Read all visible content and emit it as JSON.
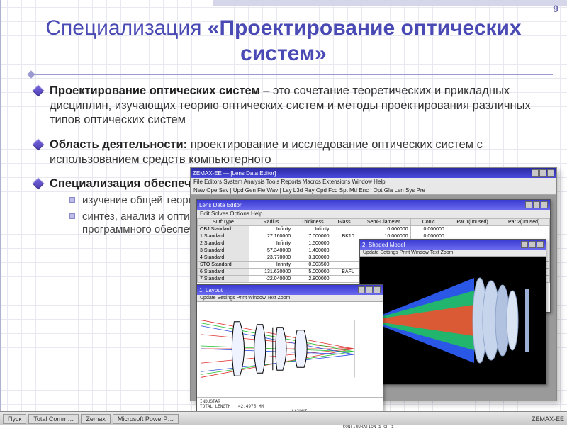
{
  "page_number": "9",
  "title_light": "Специализация ",
  "title_bold": "«Проектирование оптических систем»",
  "colors": {
    "title": "#4a4ab5",
    "page_num": "#6a6ab0",
    "grid": "#e8e8f0",
    "rule": "#9a9ad0",
    "bullet_diamond_a": "#7a6ae0",
    "bullet_diamond_b": "#4a3ab0",
    "sub_dot_fill": "#bdbde8",
    "sub_dot_border": "#8a8ad0",
    "win_gray": "#c0c0c0",
    "mdi_bg": "#9a9a9a",
    "titlebar_main_a": "#2a2aa0",
    "titlebar_main_b": "#4a4ae0",
    "titlebar_sub_a": "#3a3ad0",
    "titlebar_sub_b": "#6a6af0",
    "ray_red": "#e03030",
    "ray_green": "#20c030",
    "ray_blue": "#3050e0",
    "lens_fill": "#bcd2ff",
    "lens_stroke": "#5a78c0",
    "shaded_cone_outer": "#3060ff",
    "shaded_cone_mid": "#20c060",
    "shaded_cone_inner": "#f05030",
    "shaded_lens": "#c6d4ec"
  },
  "bullets": [
    {
      "bold": "Проектирование оптических систем",
      "rest": " – это сочетание теоретических и прикладных дисциплин, изучающих теорию оптических систем и методы проектирования различных типов оптических систем"
    },
    {
      "bold": "Область деятельности:",
      "rest_prefix": " проектирование и исследование оптических систем с использованием средств компьютерного"
    },
    {
      "bold": "Специализация обеспечивает:",
      "rest": "",
      "subs": [
        "изучение общей теории и методов расчета оптических приборов",
        "синтез, анализ и оптимизация оптических систем с помощью специализированного программного обеспечения"
      ]
    }
  ],
  "app": {
    "main_title": "ZEMAX-EE — [Lens Data Editor]",
    "menu": "File  Editors  System  Analysis  Tools  Reports  Macros  Extensions  Window  Help",
    "toolbar": "New  Ope  Sav   |  Upd  Gen  Fie  Wav   |  Lay  L3d  Ray  Opd  Fcd  Spt  Mtf  Enc   |  Opt  Gla  Len  Sys  Pre",
    "lde_title": "Lens Data Editor",
    "lde_menu": "Edit  Solves  Options  Help",
    "layout_title": "1: Layout",
    "layout_menu": "Update  Settings  Print  Window  Text  Zoom",
    "shaded_title": "2: Shaded Model",
    "shaded_menu": "Update  Settings  Print  Window  Text  Zoom",
    "layout_footer": "INDUSTAR\nTOTAL LENGTH   42.4975 MM\n                                    LAYOUT\n                                                        EFFL: 80\n                                                        INDUSTAR.ZMX\n                                                        CONFIGURATION 1 OF 1"
  },
  "lens_table": {
    "columns": [
      "Surf:Type",
      "Radius",
      "Thickness",
      "Glass",
      "Semi-Diameter",
      "Conic",
      "Par 1(unused)",
      "Par 2(unused)"
    ],
    "rows": [
      [
        "OBJ  Standard",
        "Infinity",
        "Infinity",
        "",
        "0.000000",
        "0.000000",
        "",
        ""
      ],
      [
        "1    Standard",
        "27.160000",
        "7.000000",
        "BK10",
        "10.000000",
        "0.000000",
        "",
        ""
      ],
      [
        "2    Standard",
        "Infinity",
        "1.500000",
        "",
        "10.000000",
        "0.000000",
        "",
        ""
      ],
      [
        "3    Standard",
        "-57.340000",
        "1.400000",
        "",
        "10.000000",
        "0.000000",
        "",
        ""
      ],
      [
        "4    Standard",
        "23.770000",
        "3.100000",
        "",
        "10.000000",
        "0.000000",
        "",
        ""
      ],
      [
        "STO  Standard",
        "Infinity",
        "0.003500",
        "",
        "8.000000",
        "0.000000",
        "",
        ""
      ],
      [
        "6    Standard",
        "131.630000",
        "5.000000",
        "BAFL",
        "10.000000",
        "0.000000",
        "",
        ""
      ],
      [
        "7    Standard",
        "-22.040000",
        "2.800000",
        "",
        "10.000000",
        "0.000000",
        "",
        ""
      ]
    ]
  },
  "taskbar": {
    "start": "Пуск",
    "items": [
      "Total Comm…",
      "Zemax",
      "Microsoft PowerP…"
    ],
    "tray": "ZEMAX-EE"
  }
}
